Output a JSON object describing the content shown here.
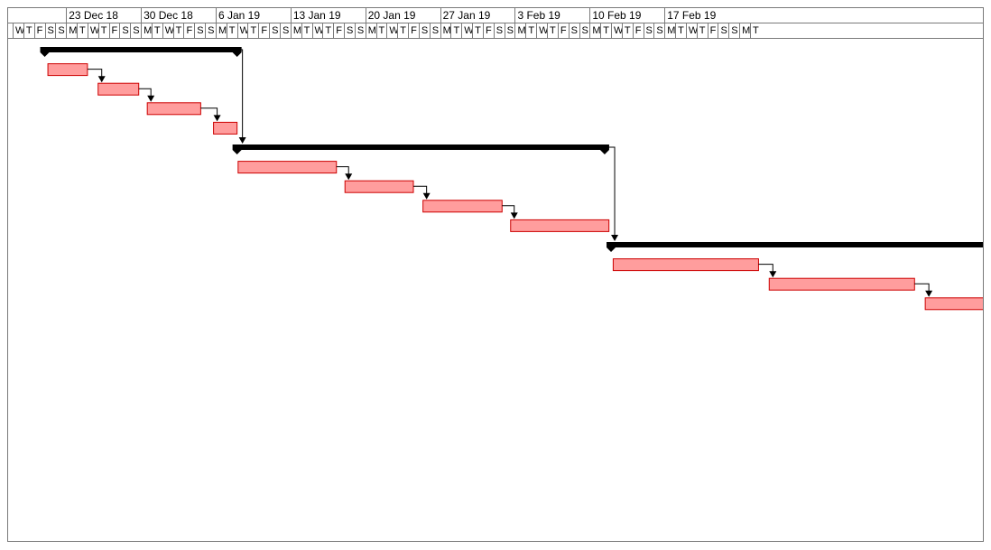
{
  "timescale": {
    "weeks": [
      "23 Dec 18",
      "30 Dec 18",
      "6 Jan 19",
      "13 Jan 19",
      "20 Jan 19",
      "27 Jan 19",
      "3 Feb 19",
      "10 Feb 19",
      "17 Feb 19"
    ],
    "days": [
      "W",
      "T",
      "F",
      "S",
      "S",
      "M",
      "T",
      "W",
      "T",
      "F",
      "S",
      "S",
      "M",
      "T",
      "W",
      "T",
      "F",
      "S",
      "S",
      "M",
      "T",
      "W",
      "T",
      "F",
      "S",
      "S",
      "M",
      "T",
      "W",
      "T",
      "F",
      "S",
      "S",
      "M",
      "T",
      "W",
      "T",
      "F",
      "S",
      "S",
      "M",
      "T",
      "W",
      "T",
      "F",
      "S",
      "S",
      "M",
      "T",
      "W",
      "T",
      "F",
      "S",
      "S",
      "M",
      "T",
      "W",
      "T",
      "F",
      "S",
      "S",
      "M",
      "T",
      "W",
      "T",
      "F",
      "S",
      "S",
      "M",
      "T"
    ]
  },
  "colors": {
    "task_fill": "#ff9d9d",
    "task_border": "#cc0000",
    "summary": "#000000",
    "link": "#000000",
    "grid": "#7a7a7a"
  },
  "rows": [
    {
      "type": "summary",
      "start": 3,
      "end": 21
    },
    {
      "type": "task",
      "start": 3.3,
      "end": 7
    },
    {
      "type": "task",
      "start": 8,
      "end": 11.8
    },
    {
      "type": "task",
      "start": 12.6,
      "end": 17.6
    },
    {
      "type": "task",
      "start": 18.8,
      "end": 21
    },
    {
      "type": "summary",
      "start": 21,
      "end": 55.4
    },
    {
      "type": "task",
      "start": 21.1,
      "end": 30.3
    },
    {
      "type": "task",
      "start": 31.1,
      "end": 37.5
    },
    {
      "type": "task",
      "start": 38.4,
      "end": 45.8
    },
    {
      "type": "task",
      "start": 46.6,
      "end": 55.8
    },
    {
      "type": "summary",
      "start": 56,
      "end": 92
    },
    {
      "type": "task",
      "start": 56.2,
      "end": 69.8
    },
    {
      "type": "task",
      "start": 70.8,
      "end": 84.4
    },
    {
      "type": "task",
      "start": 85.4,
      "end": 91.7
    }
  ],
  "links": [
    {
      "from": 1,
      "to": 2
    },
    {
      "from": 2,
      "to": 3
    },
    {
      "from": 3,
      "to": 4
    },
    {
      "from": 0,
      "to": 5
    },
    {
      "from": 6,
      "to": 7
    },
    {
      "from": 7,
      "to": 8
    },
    {
      "from": 8,
      "to": 9
    },
    {
      "from": 5,
      "to": 10
    },
    {
      "from": 11,
      "to": 12
    },
    {
      "from": 12,
      "to": 13
    }
  ]
}
